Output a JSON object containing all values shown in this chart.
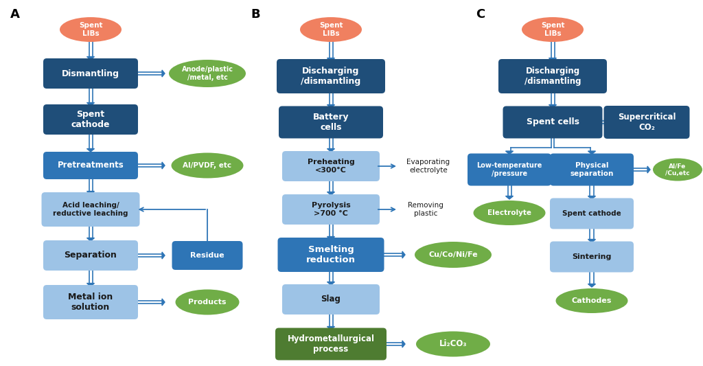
{
  "bg_color": "#ffffff",
  "border_color": "#5b9bd5",
  "salmon_color": "#f08060",
  "dark_blue": "#1f4e79",
  "medium_blue": "#2e75b6",
  "light_blue": "#9dc3e6",
  "green_color": "#70ad47",
  "dark_green": "#4e7c31",
  "text_white": "#ffffff",
  "text_dark": "#1a1a1a",
  "arrow_color": "#2e75b6",
  "label_A": "A",
  "label_B": "B",
  "label_C": "C"
}
